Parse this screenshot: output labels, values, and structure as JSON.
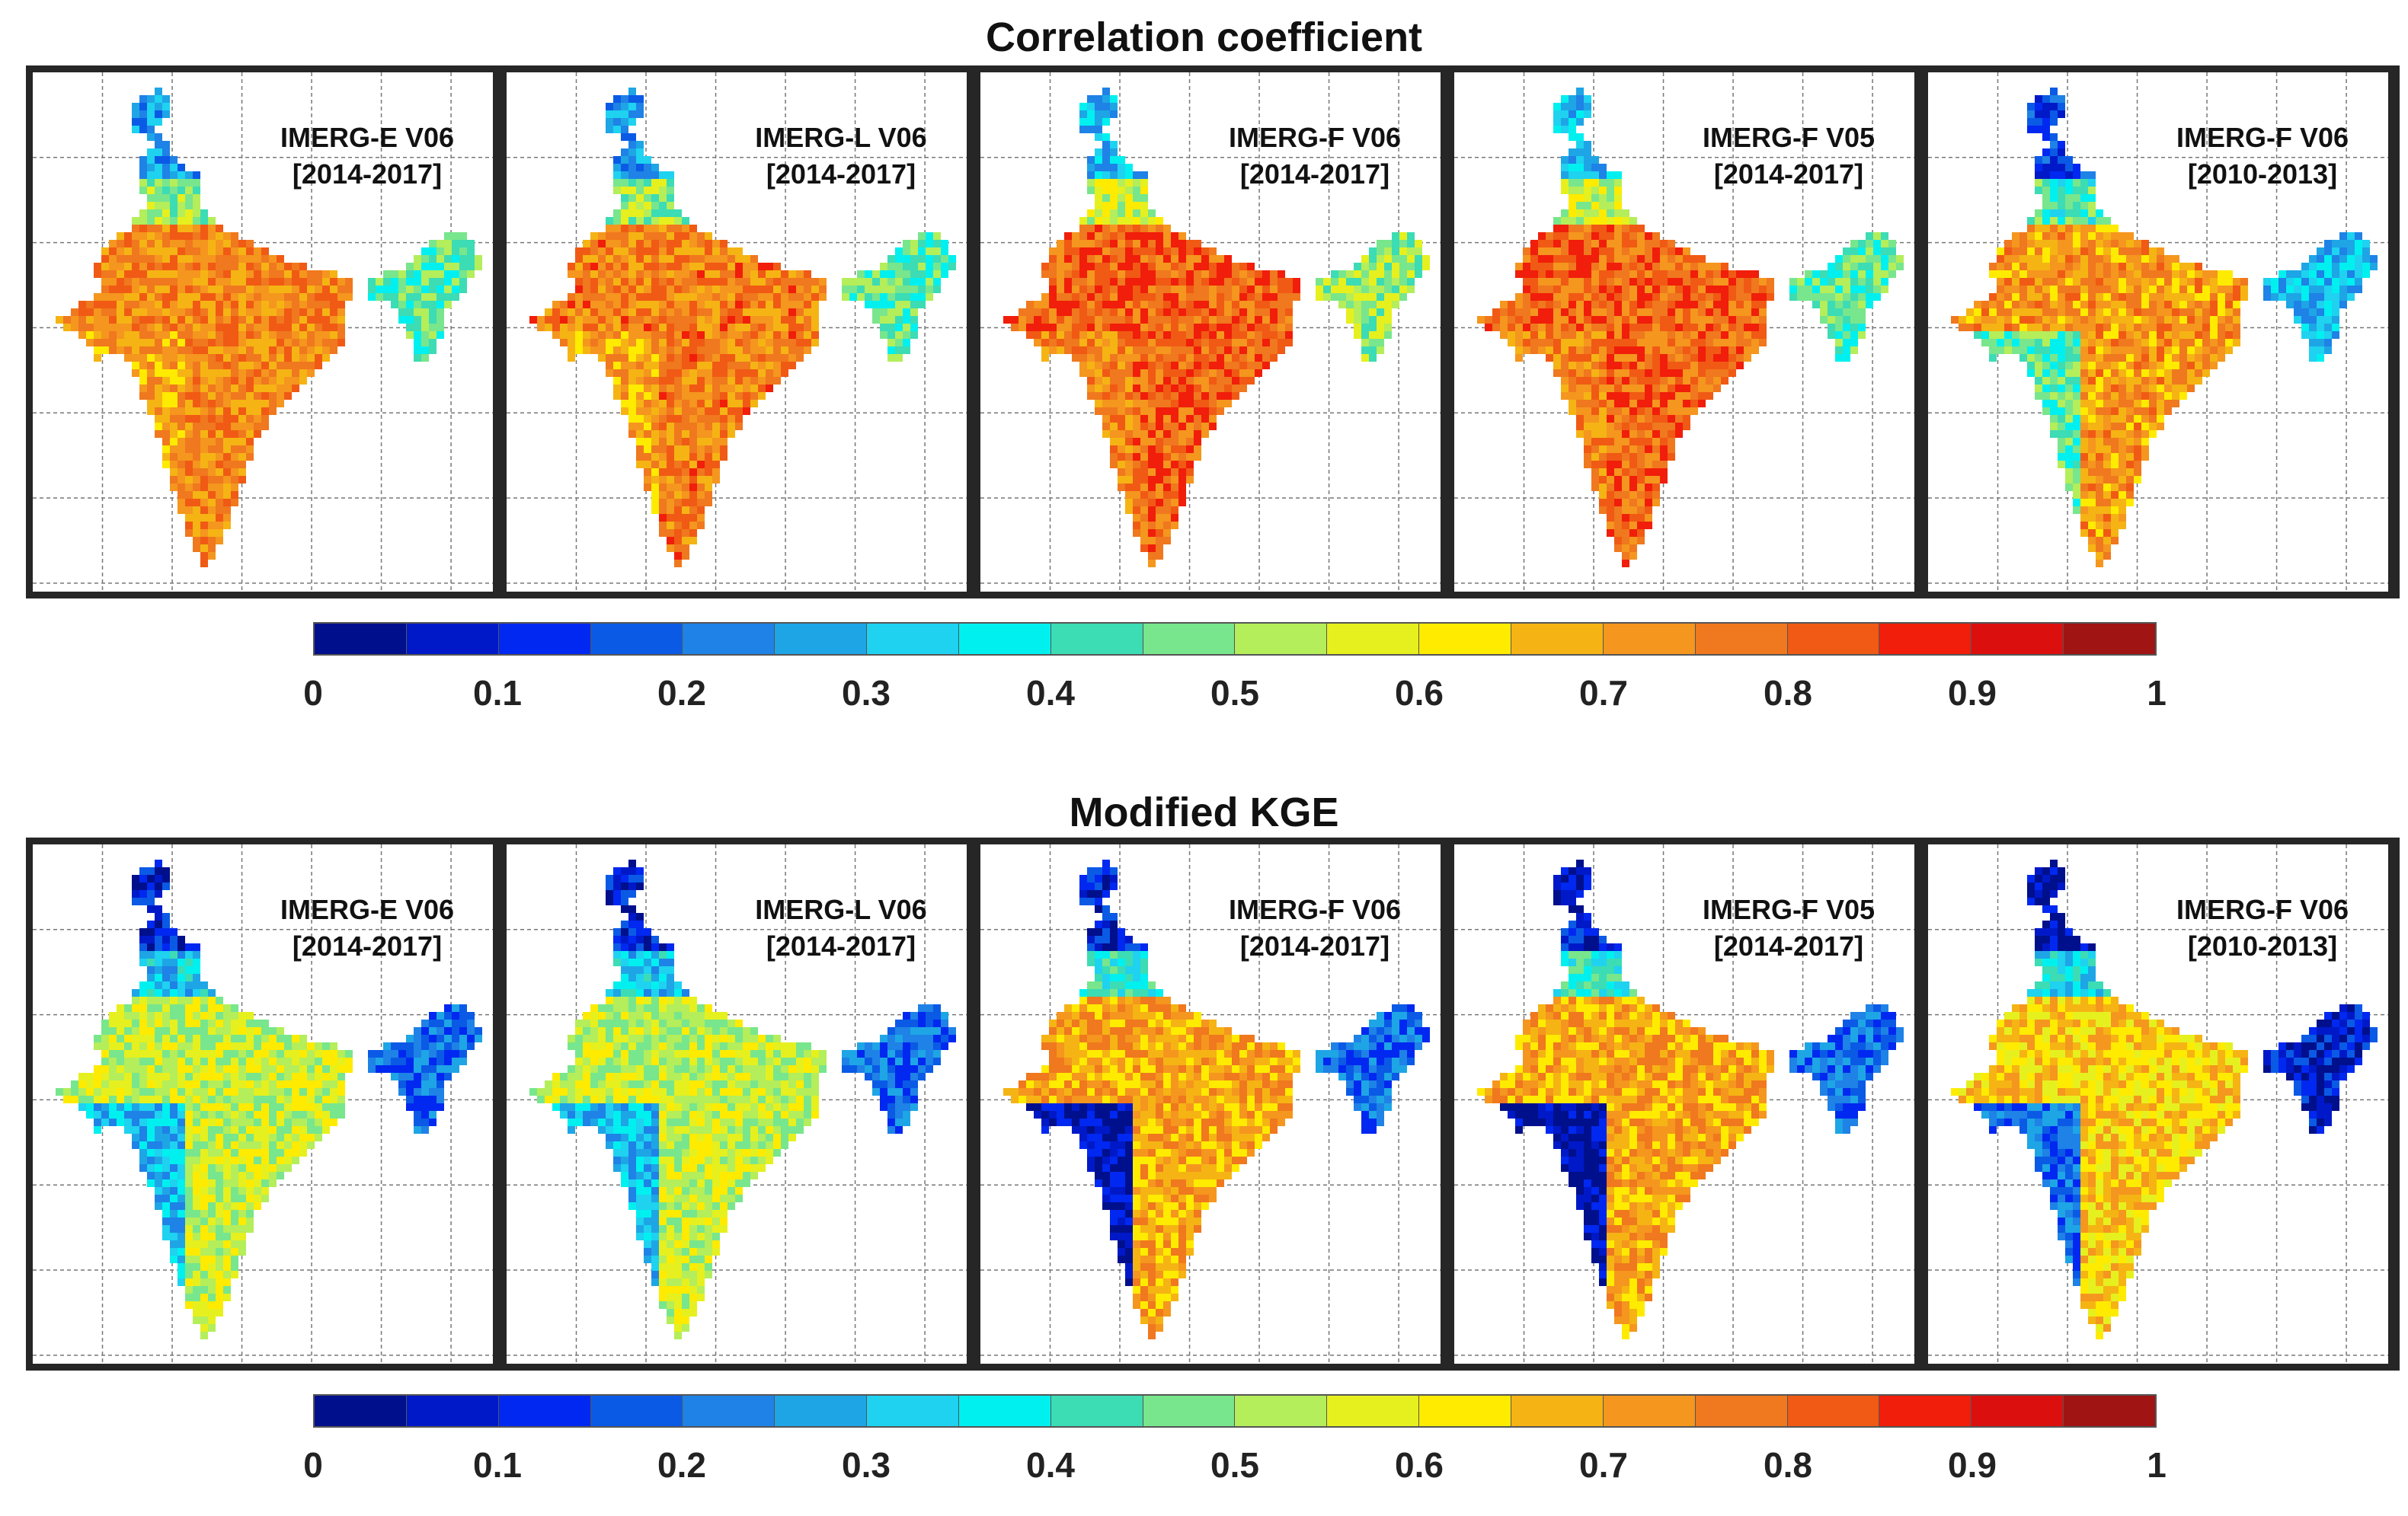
{
  "colormap": [
    "#000f8c",
    "#0019c8",
    "#0028f0",
    "#0a5ae6",
    "#1e82e6",
    "#1ea5e6",
    "#1ed2f0",
    "#00f0f0",
    "#3cdcb4",
    "#78e68c",
    "#b4ee5a",
    "#e6f01e",
    "#ffeb00",
    "#f5b414",
    "#f5961e",
    "#f0781e",
    "#f05a14",
    "#f01e0a",
    "#dc0f0f",
    "#a01414"
  ],
  "chart_data": [
    {
      "type": "heatmap",
      "title": "Correlation coefficient",
      "colorbar": {
        "min": 0,
        "max": 1,
        "ticks": [
          "0",
          "0.1",
          "0.2",
          "0.3",
          "0.4",
          "0.5",
          "0.6",
          "0.7",
          "0.8",
          "0.9",
          "1"
        ]
      },
      "panels": [
        {
          "name": "IMERG-E V06",
          "period": "[2014-2017]",
          "typical_value": 0.75,
          "north_value": 0.25,
          "ne_value": 0.45,
          "west_coast_value": 0.7
        },
        {
          "name": "IMERG-L V06",
          "period": "[2014-2017]",
          "typical_value": 0.76,
          "north_value": 0.25,
          "ne_value": 0.45,
          "west_coast_value": 0.7
        },
        {
          "name": "IMERG-F V06",
          "period": "[2014-2017]",
          "typical_value": 0.8,
          "north_value": 0.3,
          "ne_value": 0.5,
          "west_coast_value": 0.75
        },
        {
          "name": "IMERG-F V05",
          "period": "[2014-2017]",
          "typical_value": 0.8,
          "north_value": 0.3,
          "ne_value": 0.45,
          "west_coast_value": 0.75
        },
        {
          "name": "IMERG-F V06",
          "period": "[2010-2013]",
          "typical_value": 0.72,
          "north_value": 0.15,
          "ne_value": 0.3,
          "west_coast_value": 0.45
        }
      ]
    },
    {
      "type": "heatmap",
      "title": "Modified KGE",
      "colorbar": {
        "min": 0,
        "max": 1,
        "ticks": [
          "0",
          "0.1",
          "0.2",
          "0.3",
          "0.4",
          "0.5",
          "0.6",
          "0.7",
          "0.8",
          "0.9",
          "1"
        ]
      },
      "panels": [
        {
          "name": "IMERG-E V06",
          "period": "[2014-2017]",
          "typical_value": 0.55,
          "north_value": 0.1,
          "ne_value": 0.2,
          "west_coast_value": 0.3
        },
        {
          "name": "IMERG-L V06",
          "period": "[2014-2017]",
          "typical_value": 0.55,
          "north_value": 0.1,
          "ne_value": 0.2,
          "west_coast_value": 0.3
        },
        {
          "name": "IMERG-F V06",
          "period": "[2014-2017]",
          "typical_value": 0.7,
          "north_value": 0.1,
          "ne_value": 0.2,
          "west_coast_value": 0.05
        },
        {
          "name": "IMERG-F V05",
          "period": "[2014-2017]",
          "typical_value": 0.7,
          "north_value": 0.1,
          "ne_value": 0.2,
          "west_coast_value": 0.05
        },
        {
          "name": "IMERG-F V06",
          "period": "[2010-2013]",
          "typical_value": 0.65,
          "north_value": 0.05,
          "ne_value": 0.1,
          "west_coast_value": 0.2
        }
      ]
    }
  ]
}
